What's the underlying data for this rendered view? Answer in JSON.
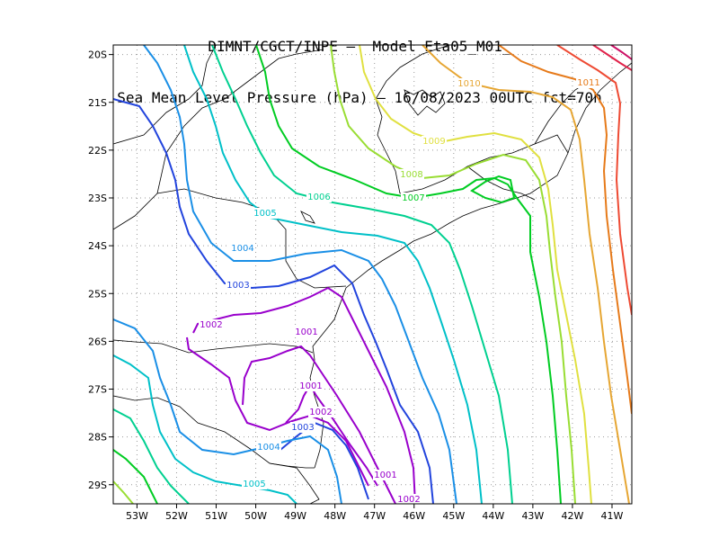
{
  "title": {
    "line1": "DIMNT/CGCT/INPE –  Model Eta05_M01_",
    "line2": "Sea Mean Level Pressure (hPa) – 16/08/2023 00UTC fct=70h"
  },
  "map": {
    "lon_range": [
      -53.6,
      -40.5
    ],
    "lat_range": [
      -29.4,
      -19.8
    ],
    "lon_ticks": [
      "53W",
      "52W",
      "51W",
      "50W",
      "49W",
      "48W",
      "47W",
      "46W",
      "45W",
      "44W",
      "43W",
      "42W",
      "41W"
    ],
    "lat_ticks": [
      "20S",
      "21S",
      "22S",
      "23S",
      "24S",
      "25S",
      "26S",
      "27S",
      "28S",
      "29S"
    ],
    "grid": true
  },
  "contours": [
    {
      "value": "1001",
      "color": "#9900cc"
    },
    {
      "value": "1002",
      "color": "#9900cc"
    },
    {
      "value": "1003",
      "color": "#2244dd"
    },
    {
      "value": "1004",
      "color": "#1a8fe6"
    },
    {
      "value": "1005",
      "color": "#00c0c8"
    },
    {
      "value": "1006",
      "color": "#00d090"
    },
    {
      "value": "1007",
      "color": "#00cc22"
    },
    {
      "value": "1008",
      "color": "#99dd33"
    },
    {
      "value": "1009",
      "color": "#e0e040"
    },
    {
      "value": "1010",
      "color": "#e6a633"
    },
    {
      "value": "1011",
      "color": "#e67a1a"
    }
  ]
}
